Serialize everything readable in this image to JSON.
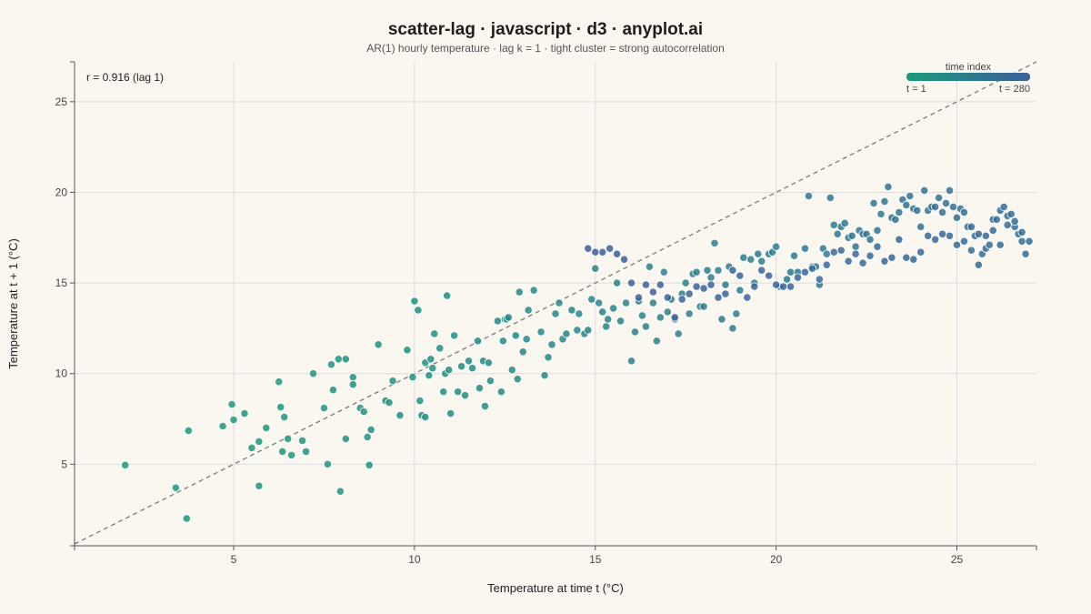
{
  "chart_data": {
    "type": "scatter",
    "title": "scatter-lag · javascript · d3 · anyplot.ai",
    "subtitle": "AR(1) hourly temperature · lag k = 1 · tight cluster = strong autocorrelation",
    "xlabel": "Temperature at time t (°C)",
    "ylabel": "Temperature at t + 1 (°C)",
    "xlim": [
      0.6,
      27.2
    ],
    "ylim": [
      0.5,
      27.2
    ],
    "xticks": [
      5,
      10,
      15,
      20,
      25
    ],
    "yticks": [
      5,
      10,
      15,
      20,
      25
    ],
    "grid": true,
    "reference_line": "y = x (dashed)",
    "annotation": "r = 0.916 (lag 1)",
    "legend": {
      "title": "time index",
      "start_label": "t = 1",
      "end_label": "t = 280",
      "color_start": "#1a9a7c",
      "color_end": "#3d5f9c",
      "placement": "top-right"
    },
    "points": [
      [
        2.0,
        4.95
      ],
      [
        3.4,
        3.7
      ],
      [
        3.7,
        2.0
      ],
      [
        3.75,
        6.85
      ],
      [
        4.7,
        7.1
      ],
      [
        4.95,
        8.3
      ],
      [
        5.0,
        7.45
      ],
      [
        5.3,
        7.8
      ],
      [
        5.5,
        5.9
      ],
      [
        5.7,
        3.8
      ],
      [
        5.7,
        6.25
      ],
      [
        5.9,
        7.0
      ],
      [
        6.25,
        9.55
      ],
      [
        6.3,
        8.15
      ],
      [
        6.35,
        5.7
      ],
      [
        6.4,
        7.6
      ],
      [
        6.5,
        6.4
      ],
      [
        6.6,
        5.5
      ],
      [
        6.9,
        6.3
      ],
      [
        7.0,
        5.7
      ],
      [
        7.2,
        10.0
      ],
      [
        7.5,
        8.1
      ],
      [
        7.6,
        5.0
      ],
      [
        7.7,
        10.5
      ],
      [
        7.75,
        9.1
      ],
      [
        7.9,
        10.8
      ],
      [
        8.1,
        10.8
      ],
      [
        7.95,
        3.5
      ],
      [
        8.1,
        6.4
      ],
      [
        8.3,
        9.8
      ],
      [
        8.3,
        9.4
      ],
      [
        8.5,
        8.1
      ],
      [
        8.6,
        7.9
      ],
      [
        8.7,
        6.5
      ],
      [
        8.75,
        4.95
      ],
      [
        8.8,
        6.9
      ],
      [
        9.0,
        11.6
      ],
      [
        9.2,
        8.5
      ],
      [
        9.3,
        8.4
      ],
      [
        9.4,
        9.6
      ],
      [
        9.6,
        7.7
      ],
      [
        9.8,
        11.3
      ],
      [
        9.95,
        9.8
      ],
      [
        10.0,
        14.0
      ],
      [
        10.1,
        13.5
      ],
      [
        10.15,
        8.5
      ],
      [
        10.2,
        7.7
      ],
      [
        10.3,
        7.6
      ],
      [
        10.3,
        10.6
      ],
      [
        10.4,
        9.9
      ],
      [
        10.45,
        10.8
      ],
      [
        10.5,
        10.3
      ],
      [
        10.55,
        12.2
      ],
      [
        10.7,
        11.4
      ],
      [
        10.8,
        9.0
      ],
      [
        10.85,
        10.0
      ],
      [
        10.9,
        14.3
      ],
      [
        10.95,
        10.2
      ],
      [
        11.0,
        7.8
      ],
      [
        11.1,
        12.1
      ],
      [
        11.2,
        9.0
      ],
      [
        11.3,
        10.4
      ],
      [
        11.4,
        8.8
      ],
      [
        11.5,
        10.7
      ],
      [
        11.6,
        10.3
      ],
      [
        11.75,
        11.8
      ],
      [
        11.8,
        9.2
      ],
      [
        11.9,
        10.7
      ],
      [
        11.95,
        8.2
      ],
      [
        12.05,
        10.6
      ],
      [
        12.1,
        9.6
      ],
      [
        12.3,
        12.9
      ],
      [
        12.4,
        9.0
      ],
      [
        12.45,
        11.8
      ],
      [
        12.5,
        13.0
      ],
      [
        12.55,
        13.0
      ],
      [
        12.6,
        13.1
      ],
      [
        12.7,
        10.2
      ],
      [
        12.8,
        12.1
      ],
      [
        12.85,
        9.7
      ],
      [
        12.9,
        14.5
      ],
      [
        13.0,
        11.2
      ],
      [
        13.1,
        11.9
      ],
      [
        13.15,
        13.5
      ],
      [
        13.3,
        14.6
      ],
      [
        13.5,
        12.3
      ],
      [
        13.6,
        9.9
      ],
      [
        13.7,
        10.9
      ],
      [
        13.8,
        11.6
      ],
      [
        13.9,
        13.3
      ],
      [
        14.0,
        13.9
      ],
      [
        14.1,
        11.9
      ],
      [
        14.2,
        12.2
      ],
      [
        14.35,
        13.5
      ],
      [
        14.5,
        12.4
      ],
      [
        14.55,
        13.3
      ],
      [
        14.7,
        12.2
      ],
      [
        14.8,
        12.4
      ],
      [
        14.9,
        14.1
      ],
      [
        15.0,
        15.8
      ],
      [
        15.1,
        13.9
      ],
      [
        15.2,
        13.4
      ],
      [
        15.3,
        12.6
      ],
      [
        15.35,
        13.0
      ],
      [
        15.5,
        13.6
      ],
      [
        15.6,
        15.0
      ],
      [
        15.7,
        12.9
      ],
      [
        15.85,
        13.9
      ],
      [
        16.0,
        10.7
      ],
      [
        16.1,
        12.3
      ],
      [
        16.2,
        14.0
      ],
      [
        16.3,
        13.2
      ],
      [
        16.4,
        12.6
      ],
      [
        16.5,
        15.9
      ],
      [
        16.6,
        13.9
      ],
      [
        16.7,
        11.8
      ],
      [
        16.8,
        13.1
      ],
      [
        16.9,
        15.6
      ],
      [
        17.0,
        13.4
      ],
      [
        17.1,
        14.1
      ],
      [
        17.2,
        13.0
      ],
      [
        17.3,
        12.2
      ],
      [
        17.4,
        14.4
      ],
      [
        17.5,
        15.0
      ],
      [
        17.6,
        13.3
      ],
      [
        17.7,
        15.5
      ],
      [
        17.8,
        15.6
      ],
      [
        17.9,
        13.7
      ],
      [
        18.0,
        13.7
      ],
      [
        18.1,
        15.7
      ],
      [
        18.2,
        15.3
      ],
      [
        18.3,
        17.2
      ],
      [
        18.4,
        15.7
      ],
      [
        18.5,
        13.0
      ],
      [
        18.6,
        14.9
      ],
      [
        18.7,
        15.9
      ],
      [
        18.8,
        12.5
      ],
      [
        18.9,
        13.3
      ],
      [
        19.0,
        14.6
      ],
      [
        19.1,
        16.4
      ],
      [
        19.3,
        16.3
      ],
      [
        19.4,
        15.0
      ],
      [
        19.5,
        16.6
      ],
      [
        19.6,
        16.2
      ],
      [
        19.8,
        16.6
      ],
      [
        19.9,
        16.7
      ],
      [
        20.0,
        17.0
      ],
      [
        20.1,
        14.8
      ],
      [
        20.3,
        15.2
      ],
      [
        20.4,
        15.6
      ],
      [
        20.5,
        16.5
      ],
      [
        20.6,
        15.6
      ],
      [
        20.8,
        16.9
      ],
      [
        20.9,
        19.8
      ],
      [
        21.0,
        15.9
      ],
      [
        21.1,
        15.9
      ],
      [
        21.2,
        14.9
      ],
      [
        21.3,
        16.9
      ],
      [
        21.4,
        16.6
      ],
      [
        21.5,
        19.7
      ],
      [
        21.6,
        18.2
      ],
      [
        21.7,
        17.7
      ],
      [
        21.8,
        18.1
      ],
      [
        21.9,
        18.3
      ],
      [
        22.0,
        17.5
      ],
      [
        22.1,
        17.6
      ],
      [
        22.2,
        17.0
      ],
      [
        22.3,
        17.9
      ],
      [
        22.4,
        17.7
      ],
      [
        22.5,
        17.7
      ],
      [
        22.6,
        17.4
      ],
      [
        22.7,
        19.4
      ],
      [
        22.8,
        17.9
      ],
      [
        22.9,
        18.8
      ],
      [
        23.0,
        19.5
      ],
      [
        23.1,
        20.3
      ],
      [
        23.2,
        18.6
      ],
      [
        23.3,
        18.5
      ],
      [
        23.4,
        18.9
      ],
      [
        23.5,
        19.6
      ],
      [
        23.6,
        19.3
      ],
      [
        23.7,
        19.8
      ],
      [
        23.8,
        19.1
      ],
      [
        23.9,
        19.0
      ],
      [
        24.0,
        18.1
      ],
      [
        24.1,
        20.1
      ],
      [
        24.2,
        19.0
      ],
      [
        24.3,
        19.2
      ],
      [
        24.4,
        19.2
      ],
      [
        24.5,
        19.7
      ],
      [
        24.6,
        18.9
      ],
      [
        24.7,
        19.4
      ],
      [
        24.8,
        20.1
      ],
      [
        24.9,
        19.2
      ],
      [
        25.0,
        18.6
      ],
      [
        25.1,
        19.1
      ],
      [
        25.2,
        18.9
      ],
      [
        25.3,
        18.1
      ],
      [
        25.4,
        16.8
      ],
      [
        25.5,
        17.6
      ],
      [
        25.6,
        16.0
      ],
      [
        25.7,
        16.6
      ],
      [
        25.8,
        16.9
      ],
      [
        25.9,
        17.1
      ],
      [
        26.0,
        18.5
      ],
      [
        26.1,
        18.5
      ],
      [
        26.2,
        19.0
      ],
      [
        26.3,
        19.2
      ],
      [
        26.4,
        18.7
      ],
      [
        26.5,
        18.8
      ],
      [
        26.6,
        18.1
      ],
      [
        26.7,
        17.7
      ],
      [
        26.8,
        17.3
      ],
      [
        26.9,
        16.6
      ],
      [
        27.0,
        17.3
      ],
      [
        26.8,
        17.8
      ],
      [
        26.6,
        18.4
      ],
      [
        26.4,
        18.2
      ],
      [
        26.2,
        17.1
      ],
      [
        26.0,
        17.9
      ],
      [
        25.8,
        17.6
      ],
      [
        25.6,
        17.7
      ],
      [
        25.4,
        18.1
      ],
      [
        25.2,
        17.3
      ],
      [
        25.0,
        17.1
      ],
      [
        24.8,
        17.6
      ],
      [
        24.6,
        17.7
      ],
      [
        24.4,
        17.4
      ],
      [
        24.2,
        17.6
      ],
      [
        24.0,
        16.7
      ],
      [
        23.8,
        16.3
      ],
      [
        23.6,
        16.4
      ],
      [
        23.4,
        17.4
      ],
      [
        23.2,
        16.4
      ],
      [
        23.0,
        16.2
      ],
      [
        22.8,
        17.0
      ],
      [
        22.6,
        16.5
      ],
      [
        22.4,
        16.1
      ],
      [
        22.2,
        16.6
      ],
      [
        22.0,
        16.2
      ],
      [
        21.8,
        16.8
      ],
      [
        21.6,
        16.7
      ],
      [
        21.4,
        16.0
      ],
      [
        21.2,
        15.2
      ],
      [
        21.0,
        15.8
      ],
      [
        20.8,
        15.6
      ],
      [
        20.6,
        15.3
      ],
      [
        20.4,
        14.8
      ],
      [
        20.2,
        14.8
      ],
      [
        20.0,
        14.9
      ],
      [
        19.8,
        15.4
      ],
      [
        19.6,
        15.7
      ],
      [
        19.4,
        14.8
      ],
      [
        19.2,
        14.2
      ],
      [
        19.0,
        15.4
      ],
      [
        18.8,
        15.7
      ],
      [
        18.6,
        14.4
      ],
      [
        18.4,
        14.2
      ],
      [
        18.2,
        14.9
      ],
      [
        18.0,
        14.7
      ],
      [
        17.8,
        14.8
      ],
      [
        17.6,
        14.4
      ],
      [
        17.4,
        14.1
      ],
      [
        17.2,
        13.1
      ],
      [
        17.0,
        14.2
      ],
      [
        16.8,
        14.9
      ],
      [
        16.6,
        14.5
      ],
      [
        16.4,
        14.9
      ],
      [
        16.2,
        14.2
      ],
      [
        16.0,
        15.0
      ],
      [
        15.8,
        16.3
      ],
      [
        15.6,
        16.6
      ],
      [
        15.4,
        16.9
      ],
      [
        15.2,
        16.7
      ],
      [
        15.0,
        16.7
      ],
      [
        14.8,
        16.9
      ]
    ]
  }
}
